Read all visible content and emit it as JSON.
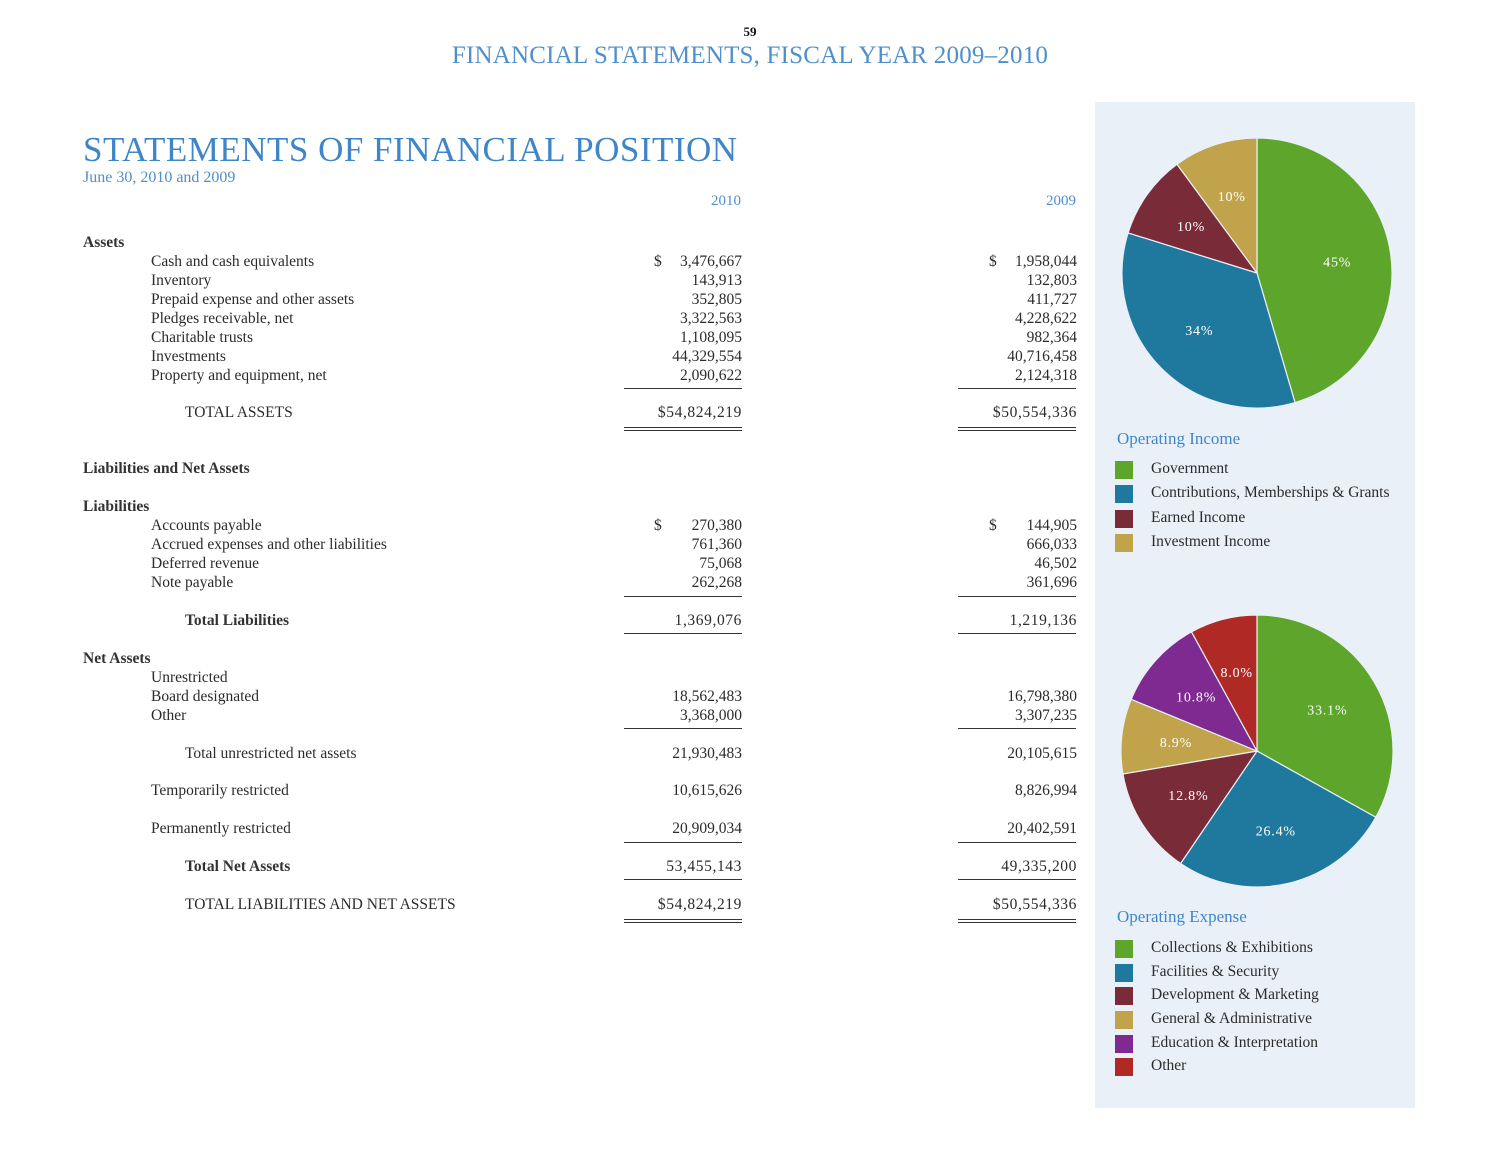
{
  "page_number": "59",
  "running_header": "FINANCIAL STATEMENTS, FISCAL YEAR 2009–2010",
  "title": "STATEMENTS OF FINANCIAL POSITION",
  "subtitle": "June 30, 2010 and 2009",
  "columns": {
    "y2010": "2010",
    "y2009": "2009"
  },
  "assets": {
    "heading": "Assets",
    "currency": "$",
    "rows": [
      {
        "label": "Cash and cash equivalents",
        "v2010": "3,476,667",
        "v2009": "1,958,044"
      },
      {
        "label": "Inventory",
        "v2010": "143,913",
        "v2009": "132,803"
      },
      {
        "label": "Prepaid expense and other assets",
        "v2010": "352,805",
        "v2009": "411,727"
      },
      {
        "label": "Pledges receivable, net",
        "v2010": "3,322,563",
        "v2009": "4,228,622"
      },
      {
        "label": "Charitable trusts",
        "v2010": "1,108,095",
        "v2009": "982,364"
      },
      {
        "label": "Investments",
        "v2010": "44,329,554",
        "v2009": "40,716,458"
      },
      {
        "label": "Property and equipment, net",
        "v2010": "2,090,622",
        "v2009": "2,124,318"
      }
    ],
    "total": {
      "label": "TOTAL ASSETS",
      "v2010": "$54,824,219",
      "v2009": "$50,554,336"
    }
  },
  "liab_net_heading": "Liabilities and Net Assets",
  "liabilities": {
    "heading": "Liabilities",
    "currency": "$",
    "rows": [
      {
        "label": "Accounts payable",
        "v2010": "270,380",
        "v2009": "144,905"
      },
      {
        "label": "Accrued expenses and other liabilities",
        "v2010": "761,360",
        "v2009": "666,033"
      },
      {
        "label": "Deferred revenue",
        "v2010": "75,068",
        "v2009": "46,502"
      },
      {
        "label": "Note payable",
        "v2010": "262,268",
        "v2009": "361,696"
      }
    ],
    "total": {
      "label": "Total Liabilities",
      "v2010": "1,369,076",
      "v2009": "1,219,136"
    }
  },
  "net_assets": {
    "heading": "Net Assets",
    "unrestricted": "Unrestricted",
    "rows": [
      {
        "label": "Board designated",
        "v2010": "18,562,483",
        "v2009": "16,798,380"
      },
      {
        "label": "Other",
        "v2010": "3,368,000",
        "v2009": "3,307,235"
      }
    ],
    "total_unrestricted": {
      "label": "Total unrestricted net assets",
      "v2010": "21,930,483",
      "v2009": "20,105,615"
    },
    "temporarily": {
      "label": "Temporarily restricted",
      "v2010": "10,615,626",
      "v2009": "8,826,994"
    },
    "permanently": {
      "label": "Permanently restricted",
      "v2010": "20,909,034",
      "v2009": "20,402,591"
    },
    "total": {
      "label": "Total Net Assets",
      "v2010": "53,455,143",
      "v2009": "49,335,200"
    },
    "grand_total": {
      "label": "TOTAL LIABILITIES AND NET ASSETS",
      "v2010": "$54,824,219",
      "v2009": "$50,554,336"
    }
  },
  "chart_data": [
    {
      "type": "pie",
      "title": "Operating Income",
      "slices": [
        {
          "name": "Government",
          "value": 45,
          "label": "45%",
          "color": "#5ea52c"
        },
        {
          "name": "Contributions, Memberships & Grants",
          "value": 34,
          "label": "34%",
          "color": "#1f799e"
        },
        {
          "name": "Earned Income",
          "value": 10,
          "label": "10%",
          "color": "#7a2b38"
        },
        {
          "name": "Investment Income",
          "value": 10,
          "label": "10%",
          "color": "#c0a34b"
        }
      ]
    },
    {
      "type": "pie",
      "title": "Operating Expense",
      "slices": [
        {
          "name": "Collections & Exhibitions",
          "value": 33.1,
          "label": "33.1%",
          "color": "#5ea52c"
        },
        {
          "name": "Facilities & Security",
          "value": 26.4,
          "label": "26.4%",
          "color": "#1f799e"
        },
        {
          "name": "Development & Marketing",
          "value": 12.8,
          "label": "12.8%",
          "color": "#7a2b38"
        },
        {
          "name": "General & Administrative",
          "value": 8.9,
          "label": "8.9%",
          "color": "#c0a34b"
        },
        {
          "name": "Education & Interpretation",
          "value": 10.8,
          "label": "10.8%",
          "color": "#7e2a91"
        },
        {
          "name": "Other",
          "value": 8.0,
          "label": "8.0%",
          "color": "#b02a25"
        }
      ]
    }
  ]
}
